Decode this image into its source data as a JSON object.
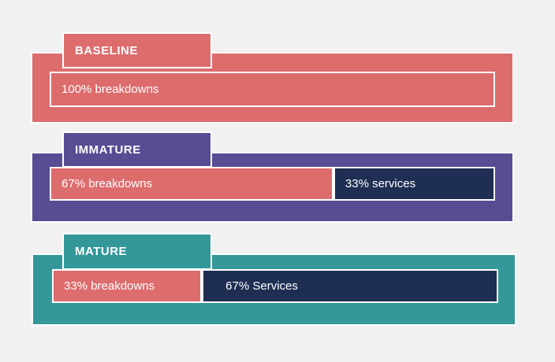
{
  "background_color": "#f1f1f1",
  "border_color": "#ffffff",
  "text_color": "#ffffff",
  "palette": {
    "coral": "#dd6c6d",
    "purple": "#564d93",
    "navy": "#1e2f53",
    "teal": "#349899"
  },
  "chart_data": {
    "type": "bar",
    "orientation": "horizontal-stacked",
    "categories": [
      "BASELINE",
      "IMMATURE",
      "MATURE"
    ],
    "series": [
      {
        "name": "breakdowns",
        "values": [
          100,
          67,
          33
        ],
        "color": "#dd6c6d"
      },
      {
        "name": "services",
        "values": [
          0,
          33,
          67
        ],
        "color": "#1e2f53"
      }
    ],
    "value_unit": "%",
    "legend": "none",
    "axes": "none"
  },
  "sections": [
    {
      "id": "baseline",
      "label": "BASELINE",
      "bar_color": "#dd6c6d",
      "segments": [
        {
          "text": "100% breakdowns",
          "color": "#dd6c6d",
          "width_pct": 100
        }
      ]
    },
    {
      "id": "immature",
      "label": "IMMATURE",
      "bar_color": "#564d93",
      "segments": [
        {
          "text": "67% breakdowns",
          "color": "#dd6c6d",
          "width_pct": 63.7
        },
        {
          "text": "33% services",
          "color": "#1e2f53",
          "width_pct": 36.3
        }
      ]
    },
    {
      "id": "mature",
      "label": "MATURE",
      "bar_color": "#349899",
      "segments": [
        {
          "text": "33% breakdowns",
          "color": "#dd6c6d",
          "width_pct": 33.6
        },
        {
          "text": "67% Services",
          "color": "#1e2f53",
          "width_pct": 66.4
        }
      ]
    }
  ]
}
